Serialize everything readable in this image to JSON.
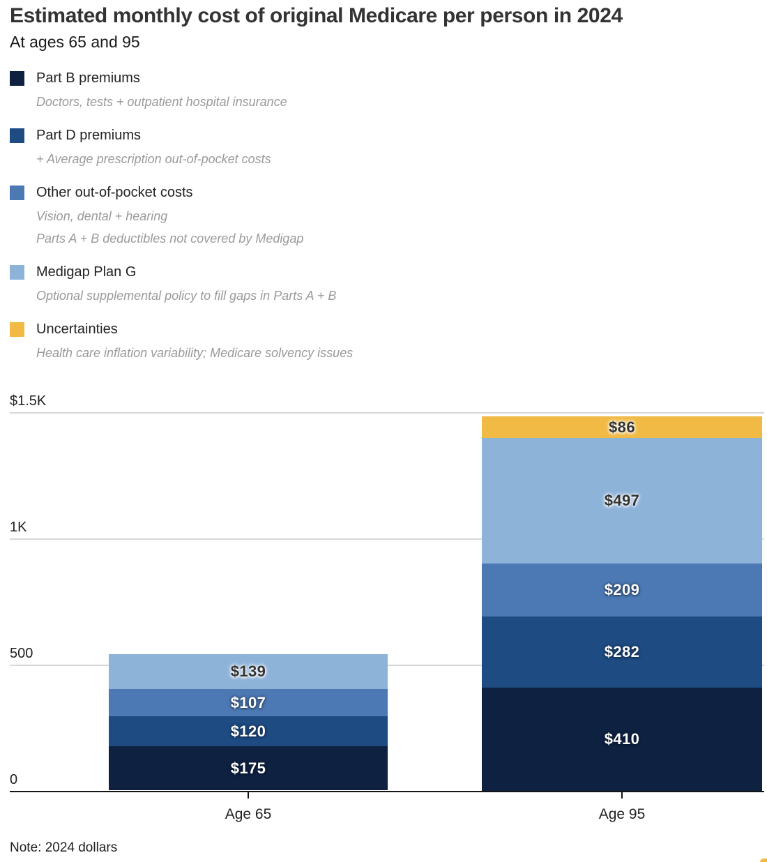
{
  "header": {
    "title": "Estimated monthly cost of original Medicare per person in 2024",
    "subtitle": "At ages 65 and 95"
  },
  "legend": {
    "items": [
      {
        "label": "Part B premiums",
        "color": "#0e2140",
        "sublabels": [
          "Doctors, tests + outpatient hospital insurance"
        ]
      },
      {
        "label": "Part D premiums",
        "color": "#1e4b82",
        "sublabels": [
          "+ Average prescription out-of-pocket costs"
        ]
      },
      {
        "label": "Other out-of-pocket costs",
        "color": "#4c79b4",
        "sublabels": [
          "Vision, dental + hearing",
          "Parts A + B deductibles not covered by Medigap"
        ]
      },
      {
        "label": "Medigap Plan G",
        "color": "#8eb3d9",
        "sublabels": [
          "Optional supplemental policy to fill gaps in Parts A + B"
        ]
      },
      {
        "label": "Uncertainties",
        "color": "#f1ba45",
        "sublabels": [
          "Health care inflation variability; Medicare solvency issues"
        ]
      }
    ]
  },
  "chart_data": {
    "type": "bar",
    "stacked": true,
    "title": "Estimated monthly cost of original Medicare per person in 2024",
    "subtitle": "At ages 65 and 95",
    "categories": [
      "Age 65",
      "Age 95"
    ],
    "series": [
      {
        "name": "Part B premiums",
        "color": "#0e2140",
        "label_style": "light",
        "values": [
          175,
          410
        ]
      },
      {
        "name": "Part D premiums",
        "color": "#1e4b82",
        "label_style": "light",
        "values": [
          120,
          282
        ]
      },
      {
        "name": "Other out-of-pocket costs",
        "color": "#4c79b4",
        "label_style": "light",
        "values": [
          107,
          209
        ]
      },
      {
        "name": "Medigap Plan G",
        "color": "#8eb3d9",
        "label_style": "dark",
        "values": [
          139,
          497
        ]
      },
      {
        "name": "Uncertainties",
        "color": "#f1ba45",
        "label_style": "dark",
        "values": [
          0,
          86
        ]
      }
    ],
    "totals": [
      541,
      1484
    ],
    "value_prefix": "$",
    "ylim": [
      0,
      1500
    ],
    "yticks": [
      {
        "label": "$1.5K",
        "value": 1500
      },
      {
        "label": "1K",
        "value": 1000
      },
      {
        "label": "500",
        "value": 500
      },
      {
        "label": "0",
        "value": 0
      }
    ],
    "grid": "horizontal",
    "legend_position": "top-left",
    "colors": {
      "gridline": "#d6d6d6",
      "axis": "#141414"
    }
  },
  "footer": {
    "note": "Note: 2024 dollars"
  }
}
